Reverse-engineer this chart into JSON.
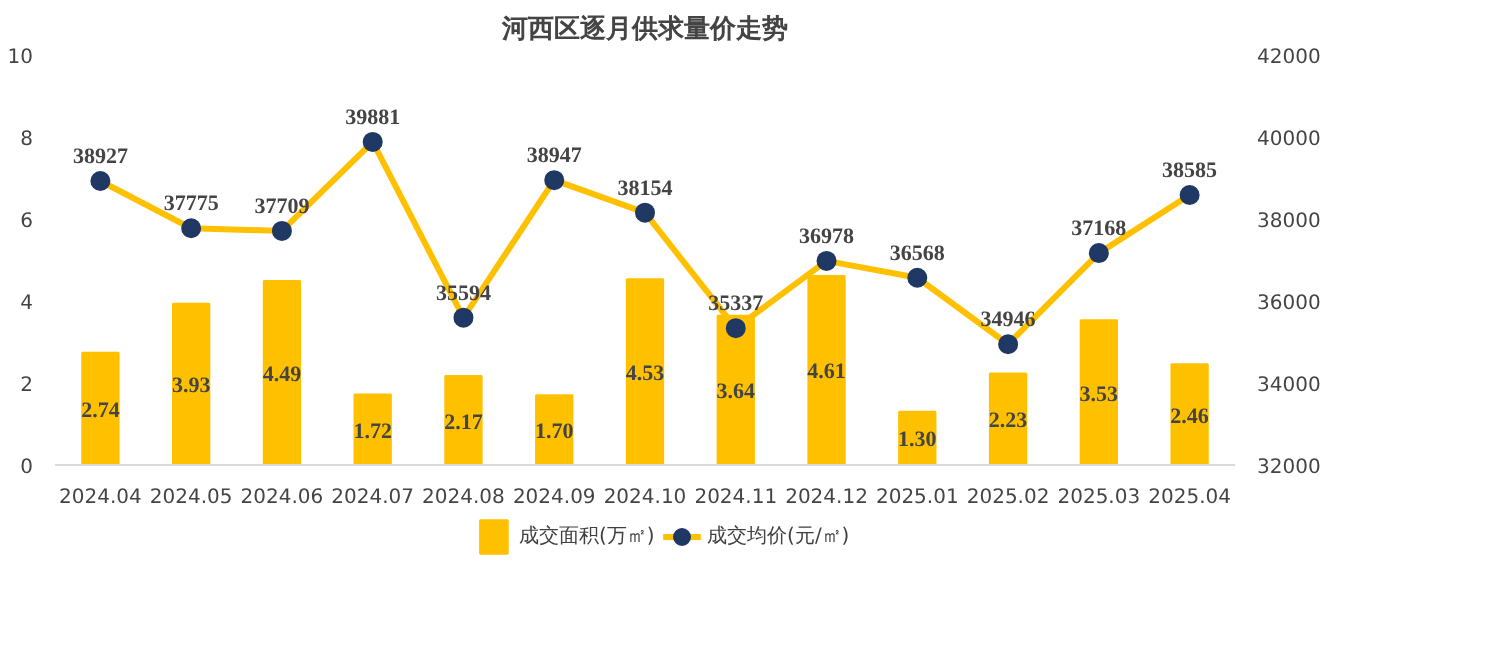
{
  "chart_data": {
    "type": "bar",
    "title": "河西区逐月供求量价走势",
    "categories": [
      "2024.04",
      "2024.05",
      "2024.06",
      "2024.07",
      "2024.08",
      "2024.09",
      "2024.10",
      "2024.11",
      "2024.12",
      "2025.01",
      "2025.02",
      "2025.03",
      "2025.04"
    ],
    "series": [
      {
        "name": "成交面积(万㎡)",
        "color": "#ffc000",
        "value_labels": [
          "2.74",
          "3.93",
          "4.49",
          "1.72",
          "2.17",
          "1.70",
          "4.53",
          "3.64",
          "4.61",
          "1.30",
          "2.23",
          "3.53",
          "2.46"
        ],
        "values": [
          2.74,
          3.93,
          4.49,
          1.72,
          2.17,
          1.7,
          4.53,
          3.64,
          4.61,
          1.3,
          2.23,
          3.53,
          2.46
        ]
      },
      {
        "name": "成交均价(元/㎡)",
        "type": "line",
        "axis": "y2",
        "color": "#ffc000",
        "marker": "circle",
        "values": [
          38927,
          37775,
          37709,
          39881,
          35594,
          38947,
          38154,
          35337,
          36978,
          36568,
          34946,
          37168,
          38585
        ]
      }
    ],
    "ylim": [
      0,
      10
    ],
    "yticks": [
      0,
      2,
      4,
      6,
      8,
      10
    ],
    "y2lim": [
      32000,
      42000
    ],
    "y2ticks": [
      32000,
      34000,
      36000,
      38000,
      40000,
      42000
    ],
    "data_labels": true,
    "grid": false,
    "legend": "bottom"
  }
}
